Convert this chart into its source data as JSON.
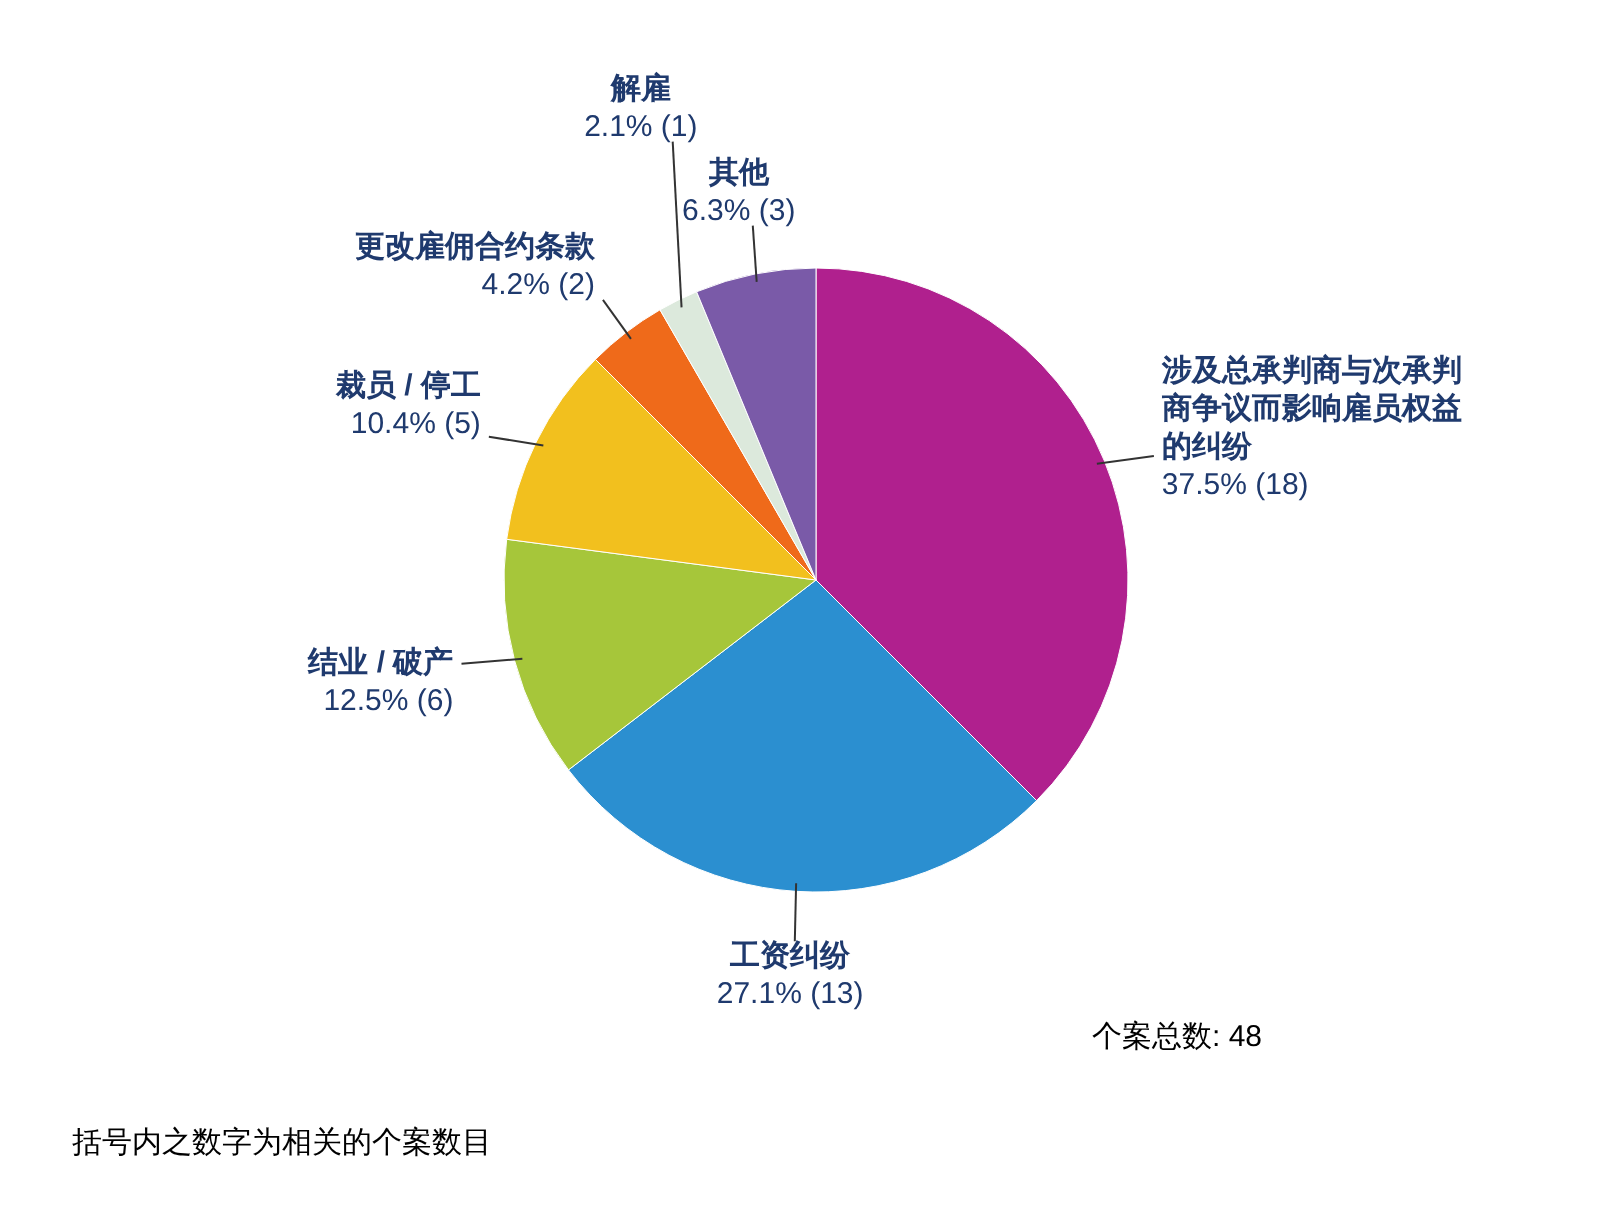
{
  "chart_data": {
    "type": "pie",
    "categories": [
      "涉及总承判商与次承判商争议而影响雇员权益的纠纷",
      "工资纠纷",
      "结业 / 破产",
      "裁员 / 停工",
      "更改雇佣合约条款",
      "解雇",
      "其他"
    ],
    "values": [
      18,
      13,
      6,
      5,
      2,
      1,
      3
    ],
    "value_labels": [
      "37.5% (18)",
      "27.1% (13)",
      "12.5% (6)",
      "10.4% (5)",
      "4.2% (2)",
      "2.1% (1)",
      "6.3% (3)"
    ],
    "colors": [
      "#b0208e",
      "#2b8fd0",
      "#a6c63a",
      "#f2c01e",
      "#ef6a1a",
      "#dce9dc",
      "#7a5aa8"
    ],
    "annotations": [
      "个案总数: 48",
      "括号内之数字为相关的个案数目"
    ]
  }
}
